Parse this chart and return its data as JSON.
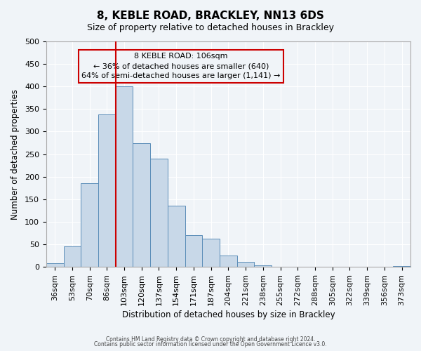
{
  "title": "8, KEBLE ROAD, BRACKLEY, NN13 6DS",
  "subtitle": "Size of property relative to detached houses in Brackley",
  "xlabel": "Distribution of detached houses by size in Brackley",
  "ylabel": "Number of detached properties",
  "bar_color": "#c8d8e8",
  "bar_edge_color": "#5b8db8",
  "background_color": "#f0f4f8",
  "grid_color": "#ffffff",
  "annotation_box_color": "#cc0000",
  "vline_color": "#cc0000",
  "categories": [
    "36sqm",
    "53sqm",
    "70sqm",
    "86sqm",
    "103sqm",
    "120sqm",
    "137sqm",
    "154sqm",
    "171sqm",
    "187sqm",
    "204sqm",
    "221sqm",
    "238sqm",
    "255sqm",
    "272sqm",
    "288sqm",
    "305sqm",
    "322sqm",
    "339sqm",
    "356sqm",
    "373sqm"
  ],
  "values": [
    8,
    46,
    185,
    338,
    400,
    275,
    240,
    136,
    70,
    62,
    25,
    11,
    4,
    1,
    1,
    0,
    0,
    0,
    0,
    0,
    2
  ],
  "vline_position": 4,
  "annotation_title": "8 KEBLE ROAD: 106sqm",
  "annotation_line1": "← 36% of detached houses are smaller (640)",
  "annotation_line2": "64% of semi-detached houses are larger (1,141) →",
  "ylim": [
    0,
    500
  ],
  "yticks": [
    0,
    50,
    100,
    150,
    200,
    250,
    300,
    350,
    400,
    450,
    500
  ],
  "footnote1": "Contains HM Land Registry data © Crown copyright and database right 2024.",
  "footnote2": "Contains public sector information licensed under the Open Government Licence v3.0."
}
